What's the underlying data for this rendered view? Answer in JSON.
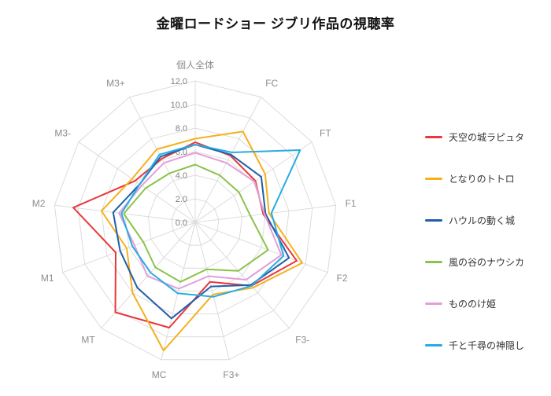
{
  "title": "金曜ロードショー ジブリ作品の視聴率",
  "chart_data": {
    "type": "radar",
    "categories": [
      "個人全体",
      "FC",
      "FT",
      "F1",
      "F2",
      "F3-",
      "F3+",
      "MC",
      "MT",
      "M1",
      "M2",
      "M3-",
      "M3+"
    ],
    "rmin": 0,
    "rmax": 12,
    "rstep": 2,
    "tick_labels": [
      "0.0",
      "2.0",
      "4.0",
      "6.0",
      "8.0",
      "10.0",
      "12.0"
    ],
    "grid": true,
    "legend_position": "right",
    "grid_color": "#dcdcdc",
    "tick_color": "#808080",
    "axis_label_color": "#8c8c8c",
    "series": [
      {
        "name": "天空の城ラピュタ",
        "color": "#e8383d",
        "values": [
          6.8,
          6.4,
          6.2,
          5.8,
          9.2,
          7.2,
          5.2,
          9.2,
          10.2,
          7.2,
          10.4,
          6.2,
          6.1
        ]
      },
      {
        "name": "となりのトトロ",
        "color": "#f5b01e",
        "values": [
          7.1,
          8.7,
          7.2,
          6.3,
          9.7,
          7.4,
          6.3,
          11.2,
          8.0,
          6.2,
          8.0,
          6.5,
          7.0
        ]
      },
      {
        "name": "ハウルの動く城",
        "color": "#1f5fa6",
        "values": [
          6.6,
          6.5,
          6.8,
          6.0,
          8.5,
          7.1,
          5.6,
          8.4,
          7.4,
          6.8,
          7.0,
          5.7,
          6.3
        ]
      },
      {
        "name": "風の谷のナウシカ",
        "color": "#8bc34a",
        "values": [
          4.9,
          4.5,
          4.5,
          4.7,
          6.6,
          5.5,
          4.1,
          5.2,
          5.1,
          4.7,
          6.1,
          5.1,
          4.7
        ]
      },
      {
        "name": "もののけ姫",
        "color": "#e39fd8",
        "values": [
          5.9,
          5.7,
          6.1,
          5.9,
          7.8,
          6.5,
          4.7,
          5.8,
          6.1,
          5.5,
          6.5,
          5.5,
          5.7
        ]
      },
      {
        "name": "千と千尋の神隠し",
        "color": "#29abe2",
        "values": [
          6.6,
          6.7,
          10.8,
          6.5,
          8.0,
          7.2,
          6.5,
          6.2,
          5.7,
          5.7,
          6.3,
          5.7,
          6.5
        ]
      }
    ]
  }
}
